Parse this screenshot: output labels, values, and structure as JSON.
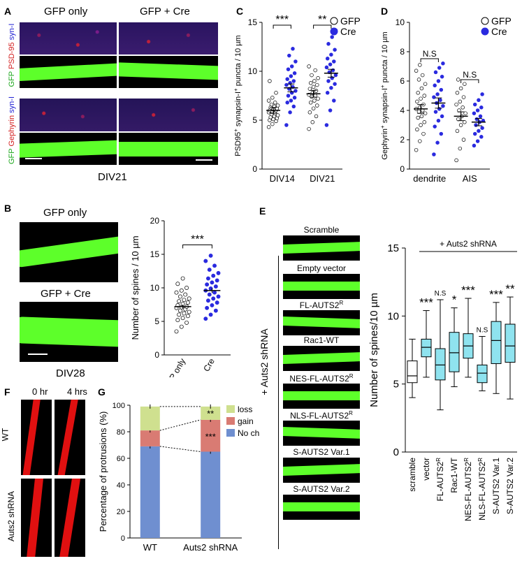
{
  "panels": {
    "A": {
      "letter": "A",
      "col_labels": [
        "GFP only",
        "GFP + Cre"
      ],
      "row_label_1": {
        "gfp": "GFP",
        "psd": "PSD-95",
        "syn": "syn-I"
      },
      "row_label_2": {
        "gfp": "GFP",
        "geph": "Gephyrin",
        "syn": "syn-I"
      },
      "caption": "DIV21"
    },
    "B": {
      "letter": "B",
      "img_label_1": "GFP only",
      "img_label_2": "GFP + Cre",
      "caption": "DIV28"
    },
    "C": {
      "letter": "C"
    },
    "D": {
      "letter": "D"
    },
    "E": {
      "letter": "E",
      "image_labels": [
        "Scramble",
        "Empty vector",
        "FL-AUTS2",
        "Rac1-WT",
        "NES-FL-AUTS2",
        "NLS-FL-AUTS2",
        "S-AUTS2 Var.1",
        "S-AUTS2 Var.2"
      ],
      "superscript_R": "R",
      "side_label": "+ Auts2 shRNA"
    },
    "F": {
      "letter": "F",
      "time_labels": [
        "0 hr",
        "4 hrs"
      ],
      "row_labels": [
        "WT",
        "Auts2 shRNA"
      ]
    },
    "G": {
      "letter": "G"
    }
  },
  "chart_data": [
    {
      "id": "C",
      "type": "scatter",
      "ylabel": "PSD95+ synapsin-I+ puncta / 10 µm",
      "ylabel_parts": {
        "a": "PSD95",
        "b": "+",
        "c": " synapsin-I",
        "d": "+",
        "e": " puncta / 10 µm"
      },
      "ylim": [
        0,
        15
      ],
      "yticks": [
        "0",
        "5",
        "10",
        "15"
      ],
      "categories": [
        "DIV14",
        "DIV21"
      ],
      "legend": [
        "GFP",
        "Cre"
      ],
      "series": [
        {
          "name": "GFP",
          "color": "#ffffff",
          "groups": [
            {
              "category": "DIV14",
              "mean": 6.0,
              "sem": 0.3,
              "values": [
                4.3,
                4.6,
                4.9,
                5.0,
                5.1,
                5.2,
                5.3,
                5.4,
                5.5,
                5.6,
                5.7,
                5.8,
                5.9,
                6.0,
                6.0,
                6.1,
                6.2,
                6.3,
                6.4,
                6.5,
                6.6,
                6.8,
                7.0,
                7.3,
                7.8,
                9.0
              ]
            },
            {
              "category": "DIV21",
              "mean": 7.7,
              "sem": 0.35,
              "values": [
                4.1,
                4.8,
                5.4,
                5.8,
                6.2,
                6.5,
                6.8,
                7.0,
                7.2,
                7.4,
                7.5,
                7.6,
                7.8,
                8.0,
                8.2,
                8.4,
                8.6,
                8.8,
                9.0,
                9.3,
                9.6,
                10.1,
                10.5
              ]
            }
          ]
        },
        {
          "name": "Cre",
          "color": "#2a2adf",
          "groups": [
            {
              "category": "DIV14",
              "mean": 8.3,
              "sem": 0.4,
              "values": [
                4.5,
                5.8,
                6.4,
                6.8,
                7.0,
                7.3,
                7.5,
                7.8,
                8.0,
                8.2,
                8.4,
                8.6,
                8.8,
                9.0,
                9.2,
                9.5,
                9.8,
                10.2,
                10.5,
                11.0,
                11.6,
                12.3
              ]
            },
            {
              "category": "DIV21",
              "mean": 9.8,
              "sem": 0.4,
              "values": [
                4.5,
                6.0,
                7.0,
                7.8,
                8.3,
                8.7,
                9.0,
                9.3,
                9.6,
                9.9,
                10.1,
                10.4,
                10.7,
                11.0,
                11.3,
                11.7,
                12.2,
                12.8,
                13.5,
                14.2
              ]
            }
          ]
        }
      ],
      "significance": [
        "***",
        "**"
      ]
    },
    {
      "id": "D",
      "type": "scatter",
      "ylabel": "Gephyrin+ synapsin-I+ puncta / 10 µm",
      "ylabel_parts": {
        "a": "Gephyrin",
        "b": "+",
        "c": " synapsin-I",
        "d": "+",
        "e": " puncta / 10 µm"
      },
      "ylim": [
        0,
        10
      ],
      "yticks": [
        "0",
        "2",
        "4",
        "6",
        "8",
        "10"
      ],
      "categories": [
        "dendrite",
        "AIS"
      ],
      "legend": [
        "GFP",
        "Cre"
      ],
      "series": [
        {
          "name": "GFP",
          "color": "#ffffff",
          "groups": [
            {
              "category": "dendrite",
              "mean": 4.1,
              "sem": 0.3,
              "values": [
                1.3,
                1.9,
                2.4,
                2.7,
                3.0,
                3.2,
                3.5,
                3.6,
                3.8,
                3.9,
                4.0,
                4.1,
                4.2,
                4.4,
                4.6,
                4.8,
                5.0,
                5.2,
                5.5,
                5.8,
                6.1,
                6.4,
                6.7,
                7.1
              ]
            },
            {
              "category": "AIS",
              "mean": 3.6,
              "sem": 0.3,
              "values": [
                0.6,
                1.4,
                2.0,
                2.6,
                3.0,
                3.2,
                3.4,
                3.6,
                3.8,
                4.0,
                4.2,
                4.4,
                4.6,
                4.9,
                5.2,
                5.5,
                5.8,
                6.1
              ]
            }
          ]
        },
        {
          "name": "Cre",
          "color": "#2a2adf",
          "groups": [
            {
              "category": "dendrite",
              "mean": 4.5,
              "sem": 0.35,
              "values": [
                1.0,
                1.8,
                2.4,
                2.9,
                3.3,
                3.6,
                3.9,
                4.1,
                4.3,
                4.5,
                4.7,
                4.9,
                5.1,
                5.4,
                5.7,
                6.0,
                6.3,
                6.6,
                6.9,
                7.2
              ]
            },
            {
              "category": "AIS",
              "mean": 3.2,
              "sem": 0.25,
              "values": [
                1.6,
                1.9,
                2.2,
                2.4,
                2.6,
                2.8,
                3.0,
                3.2,
                3.3,
                3.4,
                3.6,
                3.8,
                4.0,
                4.2,
                4.4,
                4.7,
                5.1
              ]
            }
          ]
        }
      ],
      "significance": [
        "N.S",
        "N.S"
      ]
    },
    {
      "id": "B",
      "type": "scatter",
      "ylabel": "Number of spines / 10 µm",
      "ylim": [
        0,
        20
      ],
      "yticks": [
        "0",
        "5",
        "10",
        "15",
        "20"
      ],
      "categories": [
        "GFP only",
        "Cre"
      ],
      "series": [
        {
          "name": "GFP only",
          "color": "#ffffff",
          "mean": 7.2,
          "sem": 0.3,
          "values": [
            3.5,
            4.2,
            4.8,
            5.2,
            5.5,
            5.8,
            6.0,
            6.2,
            6.4,
            6.6,
            6.8,
            7.0,
            7.1,
            7.2,
            7.4,
            7.6,
            7.8,
            8.0,
            8.2,
            8.4,
            8.7,
            9.0,
            9.3,
            9.6,
            10.0,
            10.6,
            11.4
          ]
        },
        {
          "name": "Cre",
          "color": "#2a2adf",
          "mean": 9.6,
          "sem": 0.35,
          "values": [
            5.4,
            6.0,
            6.6,
            7.0,
            7.4,
            7.8,
            8.1,
            8.4,
            8.7,
            9.0,
            9.3,
            9.6,
            9.9,
            10.2,
            10.5,
            10.8,
            11.1,
            11.4,
            11.8,
            12.2,
            12.7,
            13.3,
            14.0,
            14.8
          ]
        }
      ],
      "significance": "***"
    },
    {
      "id": "E",
      "type": "box",
      "ylabel": "Number of spines/10 µm",
      "ylim": [
        0,
        15
      ],
      "yticks": [
        "0",
        "5",
        "10",
        "15"
      ],
      "bracket_label": "+ Auts2 shRNA",
      "categories": [
        "scramble",
        "vector",
        "FL-AUTS2R",
        "Rac1-WT",
        "NES-FL-AUTS2R",
        "NLS-FL-AUTS2R",
        "S-AUTS2 Var.1",
        "S-AUTS2 Var.2"
      ],
      "boxes": [
        {
          "label": "scramble",
          "min": 4.0,
          "q1": 5.1,
          "median": 5.6,
          "q3": 6.7,
          "max": 8.3,
          "color": "#ffffff",
          "sig": ""
        },
        {
          "label": "vector",
          "min": 5.5,
          "q1": 7.0,
          "median": 7.7,
          "q3": 8.3,
          "max": 10.4,
          "color": "#8fe3ef",
          "sig": "***"
        },
        {
          "label": "FL-AUTS2R",
          "min": 3.1,
          "q1": 5.3,
          "median": 6.4,
          "q3": 7.6,
          "max": 11.2,
          "color": "#8fe3ef",
          "sig": "N.S"
        },
        {
          "label": "Rac1-WT",
          "min": 4.8,
          "q1": 5.9,
          "median": 7.3,
          "q3": 8.8,
          "max": 10.6,
          "color": "#8fe3ef",
          "sig": "*"
        },
        {
          "label": "NES-FL-AUTS2R",
          "min": 5.5,
          "q1": 6.9,
          "median": 7.8,
          "q3": 8.7,
          "max": 11.3,
          "color": "#8fe3ef",
          "sig": "***"
        },
        {
          "label": "NLS-FL-AUTS2R",
          "min": 4.5,
          "q1": 5.1,
          "median": 5.8,
          "q3": 6.4,
          "max": 8.5,
          "color": "#8fe3ef",
          "sig": "N.S"
        },
        {
          "label": "S-AUTS2 Var.1",
          "min": 4.3,
          "q1": 6.5,
          "median": 8.2,
          "q3": 9.6,
          "max": 11.0,
          "color": "#8fe3ef",
          "sig": "***"
        },
        {
          "label": "S-AUTS2 Var.2",
          "min": 3.9,
          "q1": 6.6,
          "median": 7.8,
          "q3": 9.4,
          "max": 11.4,
          "color": "#8fe3ef",
          "sig": "**"
        }
      ]
    },
    {
      "id": "G",
      "type": "stacked-bar",
      "ylabel": "Percentage of protrusions (%)",
      "ylim": [
        0,
        100
      ],
      "yticks": [
        "0",
        "20",
        "40",
        "60",
        "80",
        "100"
      ],
      "categories": [
        "WT",
        "Auts2 shRNA"
      ],
      "series": [
        {
          "name": "No change",
          "color": "#6f8fd0",
          "values": [
            69,
            65
          ]
        },
        {
          "name": "gain",
          "color": "#d97b73",
          "values": [
            12,
            24
          ]
        },
        {
          "name": "loss",
          "color": "#cfe08f",
          "values": [
            18,
            10
          ]
        }
      ],
      "legend": [
        "loss",
        "gain",
        "No change"
      ],
      "significance": [
        "**",
        "***"
      ]
    }
  ]
}
